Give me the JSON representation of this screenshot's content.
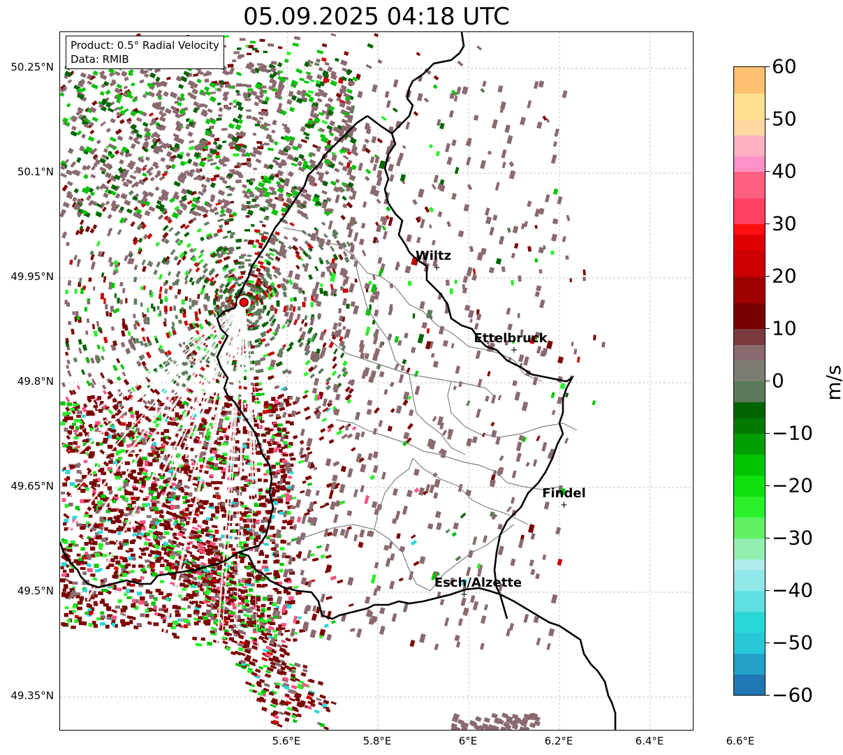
{
  "title": "05.09.2025 04:18 UTC",
  "info": {
    "product": "Product: 0.5° Radial Velocity",
    "data": "Data: RMIB"
  },
  "map": {
    "lat_labels": [
      "50.25°N",
      "50.1°N",
      "49.95°N",
      "49.8°N",
      "49.65°N",
      "49.5°N",
      "49.35°N"
    ],
    "lon_labels": [
      "5.6°E",
      "5.8°E",
      "6°E",
      "6.2°E",
      "6.4°E",
      "6.6°E"
    ],
    "cities": [
      {
        "name": "Wiltz",
        "lon": 5.93,
        "lat": 49.966
      },
      {
        "name": "Ettelbruck",
        "lon": 6.1,
        "lat": 49.848
      },
      {
        "name": "Findel",
        "lon": 6.21,
        "lat": 49.626
      },
      {
        "name": "Esch/Alzette",
        "lon": 5.99,
        "lat": 49.498
      }
    ],
    "radar_site": {
      "lon": 5.505,
      "lat": 49.915
    }
  },
  "colorbar": {
    "unit": "m/s",
    "min": -60,
    "max": 60,
    "ticks": [
      "60",
      "50",
      "40",
      "30",
      "20",
      "10",
      "0",
      "−10",
      "−20",
      "−30",
      "−40",
      "−50",
      "−60"
    ],
    "colors": {
      "neg_60": "#1f77b4",
      "neg_50": "#2ad7d7",
      "neg_40": "#b0ecec",
      "neg_30": "#29f029",
      "neg_20": "#00c400",
      "neg_10": "#006400",
      "zero_neg": "#5f7d5f",
      "zero_pos": "#8a6a6e",
      "pos_10": "#7a0000",
      "pos_20": "#cc0000",
      "pos_30": "#ff2020",
      "pos_40": "#ff5080",
      "pos_45": "#ffb0c0",
      "pos_50": "#ffe090",
      "pos_60": "#ff9a50"
    }
  }
}
